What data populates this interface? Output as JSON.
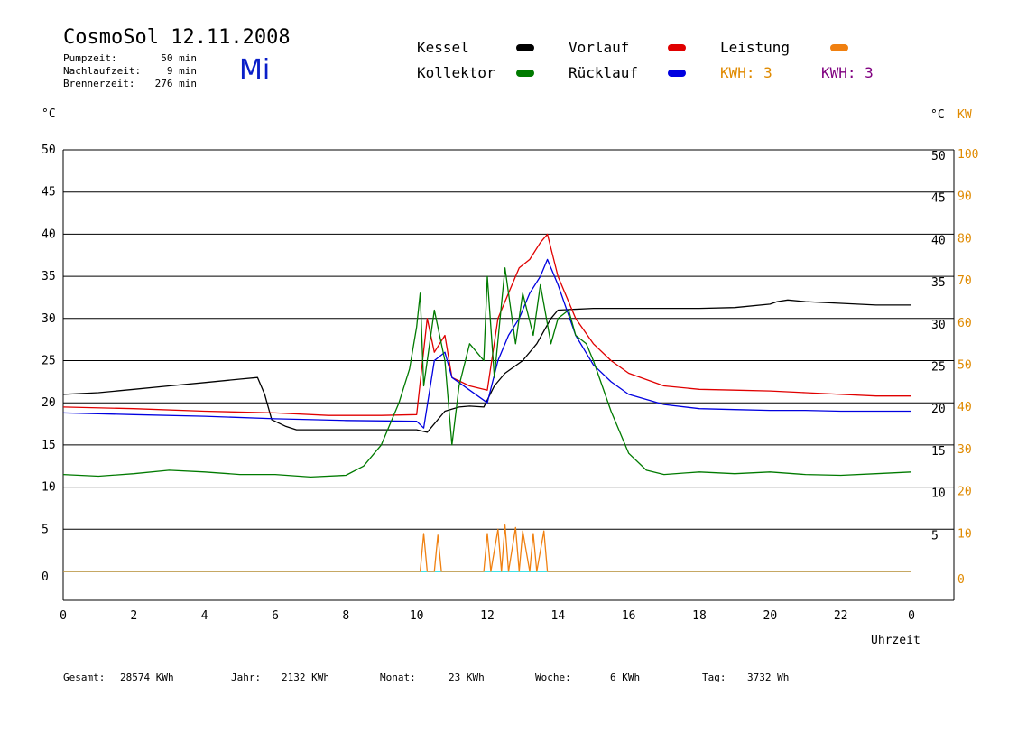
{
  "header": {
    "title": "CosmoSol 12.11.2008",
    "day": "Mi",
    "stats": [
      {
        "label": "Pumpzeit:",
        "value": "50 min"
      },
      {
        "label": "Nachlaufzeit:",
        "value": "9 min"
      },
      {
        "label": "Brennerzeit:",
        "value": "276 min"
      }
    ]
  },
  "legend": {
    "kessel": {
      "label": "Kessel",
      "color": "#000000"
    },
    "vorlauf": {
      "label": "Vorlauf",
      "color": "#e00000"
    },
    "leistung": {
      "label": "Leistung",
      "color": "#f08010"
    },
    "kollektor": {
      "label": "Kollektor",
      "color": "#007a00"
    },
    "ruecklauf": {
      "label": "Rücklauf",
      "color": "#0000e0"
    },
    "kwh1": {
      "label": "KWH:",
      "value": "3",
      "color": "#e08a00"
    },
    "kwh2": {
      "label": "KWH:",
      "value": "3",
      "color": "#800080"
    }
  },
  "axes": {
    "left_unit": "°C",
    "right_unit": "°C",
    "right_unit2": "KW",
    "x_label": "Uhrzeit"
  },
  "footer": [
    {
      "label": "Gesamt:",
      "value": "28574 KWh"
    },
    {
      "label": "Jahr:",
      "value": "2132 KWh"
    },
    {
      "label": "Monat:",
      "value": "23 KWh"
    },
    {
      "label": "Woche:",
      "value": "6 KWh"
    },
    {
      "label": "Tag:",
      "value": "3732 Wh"
    }
  ],
  "chart_data": {
    "type": "line",
    "x_ticks": [
      "0",
      "2",
      "4",
      "6",
      "8",
      "10",
      "12",
      "14",
      "16",
      "18",
      "20",
      "22",
      "0"
    ],
    "y_ticks_left": [
      "50",
      "45",
      "40",
      "35",
      "30",
      "25",
      "20",
      "15",
      "10",
      "5",
      "0"
    ],
    "y_ticks_right": [
      "50",
      "45",
      "40",
      "35",
      "30",
      "25",
      "20",
      "15",
      "10",
      "5"
    ],
    "y_ticks_right_kw": [
      "100",
      "90",
      "80",
      "70",
      "60",
      "50",
      "40",
      "30",
      "20",
      "10",
      "0"
    ],
    "xlim": [
      0,
      24
    ],
    "ylim": [
      0,
      50
    ],
    "grid": true,
    "series": [
      {
        "key": "kessel",
        "color": "#000000",
        "x": [
          0,
          1,
          2,
          3,
          4,
          5,
          5.5,
          5.7,
          5.9,
          6.3,
          6.6,
          7,
          8,
          9,
          10,
          10.3,
          10.8,
          11.2,
          11.5,
          11.9,
          12.2,
          12.5,
          13,
          13.4,
          13.8,
          14,
          15,
          16,
          17,
          18,
          19,
          20,
          20.2,
          20.5,
          21,
          22,
          23,
          24
        ],
        "y": [
          21,
          21.2,
          21.6,
          22,
          22.4,
          22.8,
          23,
          21,
          18,
          17.2,
          16.8,
          16.8,
          16.8,
          16.8,
          16.8,
          16.5,
          19,
          19.5,
          19.6,
          19.5,
          22,
          23.5,
          25,
          27,
          30,
          31,
          31.2,
          31.2,
          31.2,
          31.2,
          31.3,
          31.7,
          32,
          32.2,
          32,
          31.8,
          31.6,
          31.6
        ]
      },
      {
        "key": "vorlauf",
        "color": "#e00000",
        "x": [
          0,
          2,
          4,
          6,
          7.5,
          9,
          10,
          10.3,
          10.5,
          10.8,
          11,
          11.5,
          12,
          12.3,
          12.6,
          12.9,
          13.2,
          13.5,
          13.7,
          14,
          14.5,
          15,
          15.5,
          16,
          17,
          18,
          19,
          20,
          21,
          22,
          23,
          24
        ],
        "y": [
          19.5,
          19.3,
          19,
          18.8,
          18.5,
          18.5,
          18.6,
          30,
          26,
          28,
          23,
          22,
          21.5,
          30,
          33,
          36,
          37,
          39,
          40,
          35,
          30,
          27,
          25,
          23.5,
          22,
          21.6,
          21.5,
          21.4,
          21.2,
          21,
          20.8,
          20.8
        ]
      },
      {
        "key": "ruecklauf",
        "color": "#0000e0",
        "x": [
          0,
          2,
          4,
          6,
          8,
          10,
          10.2,
          10.5,
          10.8,
          11,
          11.5,
          12,
          12.3,
          12.6,
          12.9,
          13.2,
          13.5,
          13.7,
          14,
          14.5,
          15,
          15.5,
          16,
          17,
          18,
          19,
          20,
          21,
          22,
          23,
          24
        ],
        "y": [
          18.8,
          18.6,
          18.4,
          18.1,
          17.9,
          17.8,
          17,
          25,
          26,
          23,
          21.5,
          20,
          25,
          28,
          30,
          33,
          35,
          37,
          34,
          28,
          24.5,
          22.5,
          21,
          19.8,
          19.3,
          19.2,
          19.1,
          19.1,
          19,
          19,
          19
        ]
      },
      {
        "key": "kollektor",
        "color": "#007a00",
        "x": [
          0,
          1,
          2,
          3,
          4,
          5,
          6,
          7,
          8,
          8.5,
          9,
          9.5,
          9.8,
          10,
          10.1,
          10.2,
          10.5,
          10.8,
          11,
          11.2,
          11.5,
          11.7,
          11.9,
          12,
          12.2,
          12.5,
          12.8,
          13,
          13.3,
          13.5,
          13.8,
          14,
          14.3,
          14.5,
          14.8,
          15,
          15.5,
          16,
          16.5,
          17,
          18,
          19,
          20,
          21,
          22,
          23,
          24
        ],
        "y": [
          11.5,
          11.3,
          11.6,
          12,
          11.8,
          11.5,
          11.5,
          11.2,
          11.4,
          12.5,
          15,
          20,
          24,
          29,
          33,
          22,
          31,
          25,
          15,
          22,
          27,
          26,
          25,
          35,
          23,
          36,
          27,
          33,
          28,
          34,
          27,
          30,
          31,
          28,
          27,
          25,
          19,
          14,
          12,
          11.5,
          11.8,
          11.6,
          11.8,
          11.5,
          11.4,
          11.6,
          11.8
        ]
      },
      {
        "key": "leistung",
        "color": "#f08010",
        "x": [
          0,
          10.1,
          10.2,
          10.3,
          10.5,
          10.6,
          10.7,
          10.8,
          11,
          11.9,
          12,
          12.1,
          12.3,
          12.4,
          12.5,
          12.6,
          12.8,
          12.9,
          13,
          13.2,
          13.3,
          13.4,
          13.6,
          13.7,
          13.8,
          24
        ],
        "y": [
          0,
          0,
          4.5,
          0,
          0,
          4.3,
          0,
          0,
          0,
          0,
          4.5,
          0,
          5,
          0,
          5.5,
          0,
          5.2,
          0,
          4.8,
          0,
          4.5,
          0,
          4.8,
          0,
          0,
          0
        ]
      }
    ]
  }
}
